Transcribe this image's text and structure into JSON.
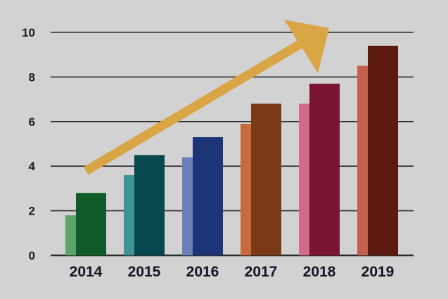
{
  "chart_data": {
    "type": "bar",
    "categories": [
      "2014",
      "2015",
      "2016",
      "2017",
      "2018",
      "2019"
    ],
    "series": [
      {
        "values": [
          1.8,
          3.6,
          4.4,
          5.9,
          6.8,
          8.5
        ]
      },
      {
        "values": [
          2.8,
          4.5,
          5.3,
          6.8,
          7.7,
          9.4
        ]
      }
    ],
    "ylim": [
      0,
      10
    ],
    "yticks": [
      0,
      2,
      4,
      6,
      8,
      10
    ],
    "grid": true,
    "legend": "none",
    "colors": {
      "back": [
        "#5aa66a",
        "#3d9493",
        "#6b7fb8",
        "#c96a3c",
        "#d26a8a",
        "#c75f4f"
      ],
      "front": [
        "#0f5c2a",
        "#07484e",
        "#1d3577",
        "#7a3a15",
        "#7a1531",
        "#5c1a10"
      ],
      "trend_arrow": "#d9a545",
      "grid": "#2a2a2a"
    }
  }
}
